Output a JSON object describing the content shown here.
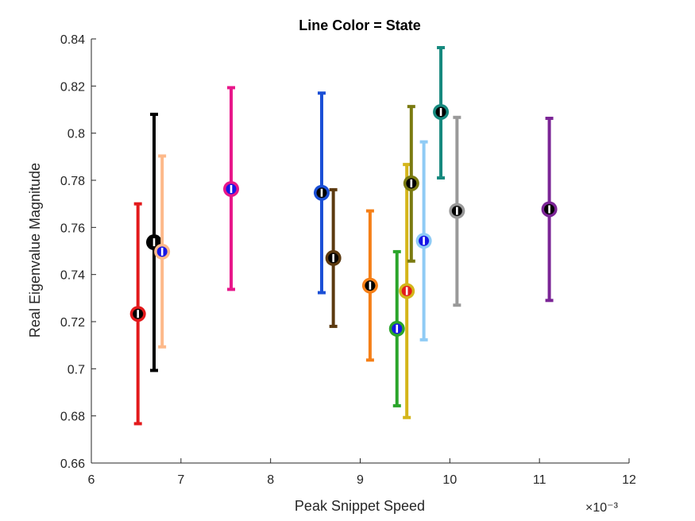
{
  "chart_data": {
    "type": "scatter",
    "title": "Line Color = State",
    "xlabel": "Peak Snippet Speed",
    "ylabel": "Real Eigenvalue Magnitude",
    "x_multiplier_label": "×10⁻³",
    "xlim": [
      6,
      12
    ],
    "ylim": [
      0.66,
      0.84
    ],
    "xticks": [
      6,
      7,
      8,
      9,
      10,
      11,
      12
    ],
    "xtick_labels": [
      "6",
      "7",
      "8",
      "9",
      "10",
      "11",
      "12"
    ],
    "yticks": [
      0.66,
      0.68,
      0.7,
      0.72,
      0.74,
      0.76,
      0.78,
      0.8,
      0.82,
      0.84
    ],
    "ytick_labels": [
      "0.66",
      "0.68",
      "0.7",
      "0.72",
      "0.74",
      "0.76",
      "0.78",
      "0.8",
      "0.82",
      "0.84"
    ],
    "grid": false,
    "series": [
      {
        "x": 6.52,
        "y": 0.7233,
        "ylow": 0.6767,
        "yhigh": 0.77,
        "line_color": "#e31a1c",
        "marker_color": "#000000"
      },
      {
        "x": 6.7,
        "y": 0.7537,
        "ylow": 0.6993,
        "yhigh": 0.808,
        "line_color": "#000000",
        "marker_color": "#000000"
      },
      {
        "x": 6.79,
        "y": 0.7497,
        "ylow": 0.7093,
        "yhigh": 0.7903,
        "line_color": "#fdb98a",
        "marker_color": "#1616e6"
      },
      {
        "x": 7.56,
        "y": 0.7763,
        "ylow": 0.7337,
        "yhigh": 0.8193,
        "line_color": "#e8178a",
        "marker_color": "#1616e6"
      },
      {
        "x": 8.57,
        "y": 0.7747,
        "ylow": 0.7323,
        "yhigh": 0.817,
        "line_color": "#1a4fd6",
        "marker_color": "#000000"
      },
      {
        "x": 8.7,
        "y": 0.747,
        "ylow": 0.718,
        "yhigh": 0.776,
        "line_color": "#5c3a10",
        "marker_color": "#000000"
      },
      {
        "x": 9.11,
        "y": 0.7353,
        "ylow": 0.7037,
        "yhigh": 0.767,
        "line_color": "#f57f17",
        "marker_color": "#000000"
      },
      {
        "x": 9.41,
        "y": 0.717,
        "ylow": 0.6843,
        "yhigh": 0.7497,
        "line_color": "#2aa52a",
        "marker_color": "#1616e6"
      },
      {
        "x": 9.52,
        "y": 0.733,
        "ylow": 0.6793,
        "yhigh": 0.7867,
        "line_color": "#d4b51a",
        "marker_color": "#e31a1c"
      },
      {
        "x": 9.57,
        "y": 0.7787,
        "ylow": 0.7457,
        "yhigh": 0.8113,
        "line_color": "#7a7a10",
        "marker_color": "#000000"
      },
      {
        "x": 9.71,
        "y": 0.7543,
        "ylow": 0.7123,
        "yhigh": 0.7963,
        "line_color": "#8fcbf5",
        "marker_color": "#1616e6"
      },
      {
        "x": 9.9,
        "y": 0.809,
        "ylow": 0.781,
        "yhigh": 0.8363,
        "line_color": "#16897e",
        "marker_color": "#000000"
      },
      {
        "x": 10.08,
        "y": 0.767,
        "ylow": 0.727,
        "yhigh": 0.8067,
        "line_color": "#999999",
        "marker_color": "#000000"
      },
      {
        "x": 11.11,
        "y": 0.7677,
        "ylow": 0.729,
        "yhigh": 0.8063,
        "line_color": "#7b2596",
        "marker_color": "#000000"
      }
    ]
  }
}
